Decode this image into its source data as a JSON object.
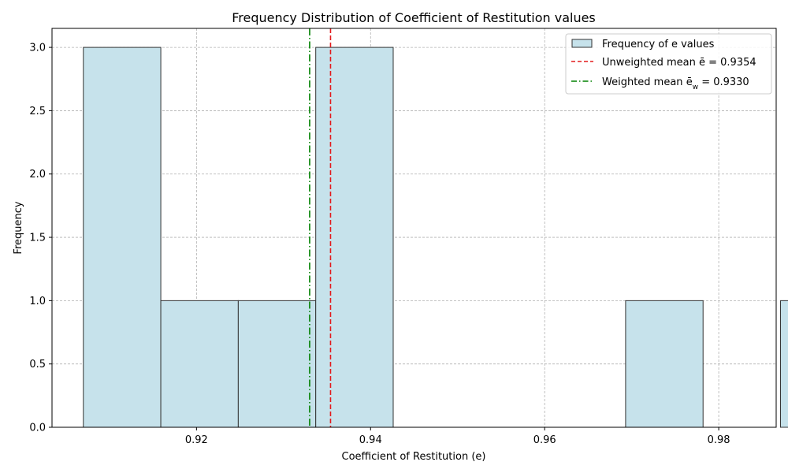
{
  "chart_data": {
    "type": "bar",
    "subtype": "histogram",
    "title": "Frequency Distribution of Coefficient of Restitution values",
    "xlabel": "Coefficient of Restitution (e)",
    "ylabel": "Frequency",
    "xlim": [
      0.9034,
      0.9866
    ],
    "ylim": [
      0.0,
      3.15
    ],
    "grid": true,
    "legend_position": "top-right",
    "bars": [
      {
        "x0": 0.907,
        "x1": 0.9159,
        "value": 3
      },
      {
        "x0": 0.9159,
        "x1": 0.9248,
        "value": 1
      },
      {
        "x0": 0.9248,
        "x1": 0.9337,
        "value": 1
      },
      {
        "x0": 0.9337,
        "x1": 0.9426,
        "value": 3
      },
      {
        "x0": 0.9426,
        "x1": 0.9515,
        "value": 0
      },
      {
        "x0": 0.9515,
        "x1": 0.9604,
        "value": 0
      },
      {
        "x0": 0.9604,
        "x1": 0.9693,
        "value": 0
      },
      {
        "x0": 0.9693,
        "x1": 0.9782,
        "value": 1
      },
      {
        "x0": 0.9782,
        "x1": 0.9871,
        "value": 0
      },
      {
        "x0": 0.9871,
        "x1": 0.996,
        "value": 1
      }
    ],
    "xticks": [
      {
        "value": 0.92,
        "label": "0.92"
      },
      {
        "value": 0.94,
        "label": "0.94"
      },
      {
        "value": 0.96,
        "label": "0.96"
      },
      {
        "value": 0.98,
        "label": "0.98"
      }
    ],
    "yticks": [
      {
        "value": 0.0,
        "label": "0.0"
      },
      {
        "value": 0.5,
        "label": "0.5"
      },
      {
        "value": 1.0,
        "label": "1.0"
      },
      {
        "value": 1.5,
        "label": "1.5"
      },
      {
        "value": 2.0,
        "label": "2.0"
      },
      {
        "value": 2.5,
        "label": "2.5"
      },
      {
        "value": 3.0,
        "label": "3.0"
      }
    ],
    "vlines": [
      {
        "name": "Unweighted mean",
        "x": 0.9354,
        "color": "#e31a1c",
        "style": "dashed"
      },
      {
        "name": "Weighted mean",
        "x": 0.933,
        "color": "#008000",
        "style": "dashdot"
      }
    ],
    "legend": [
      {
        "label": "Frequency of e values",
        "kind": "bar"
      },
      {
        "label_prefix": "Unweighted mean ",
        "symbol": "ē",
        "label_suffix": " = 0.9354",
        "kind": "dashed"
      },
      {
        "label_prefix": "Weighted mean ",
        "symbol": "ē",
        "subscript": "w",
        "label_suffix": " = 0.9330",
        "kind": "dashdot"
      }
    ],
    "colors": {
      "bar_fill": "#c6e2eb",
      "bar_edge": "#333333",
      "unweighted_mean": "#e31a1c",
      "weighted_mean": "#008000"
    }
  }
}
